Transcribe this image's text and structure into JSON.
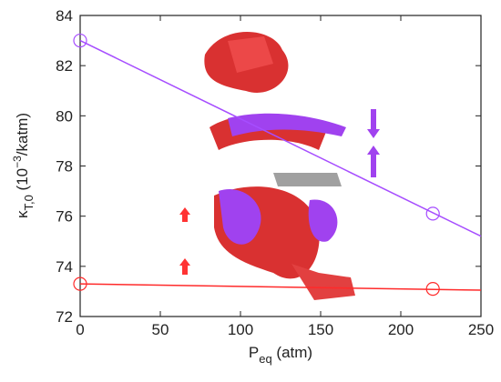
{
  "chart_data": {
    "type": "line",
    "xlabel_parts": [
      "P",
      "eq",
      " (atm)"
    ],
    "ylabel_parts": [
      "κ",
      "T,0",
      " (10",
      "−3",
      "/katm)"
    ],
    "xlim": [
      0,
      250
    ],
    "xticks": [
      0,
      50,
      100,
      150,
      200,
      250
    ],
    "ylim": [
      72,
      84
    ],
    "yticks": [
      72,
      74,
      76,
      78,
      80,
      82,
      84
    ],
    "series": [
      {
        "color": "#a64dff",
        "x": [
          0,
          220
        ],
        "values": [
          83,
          76.1
        ],
        "fit_x": [
          0,
          250
        ],
        "fit_values": [
          83,
          75.2
        ]
      },
      {
        "color": "#ff2a2a",
        "x": [
          0,
          220
        ],
        "values": [
          73.3,
          73.1
        ],
        "fit_x": [
          0,
          250
        ],
        "fit_values": [
          73.3,
          73.05
        ]
      }
    ]
  }
}
